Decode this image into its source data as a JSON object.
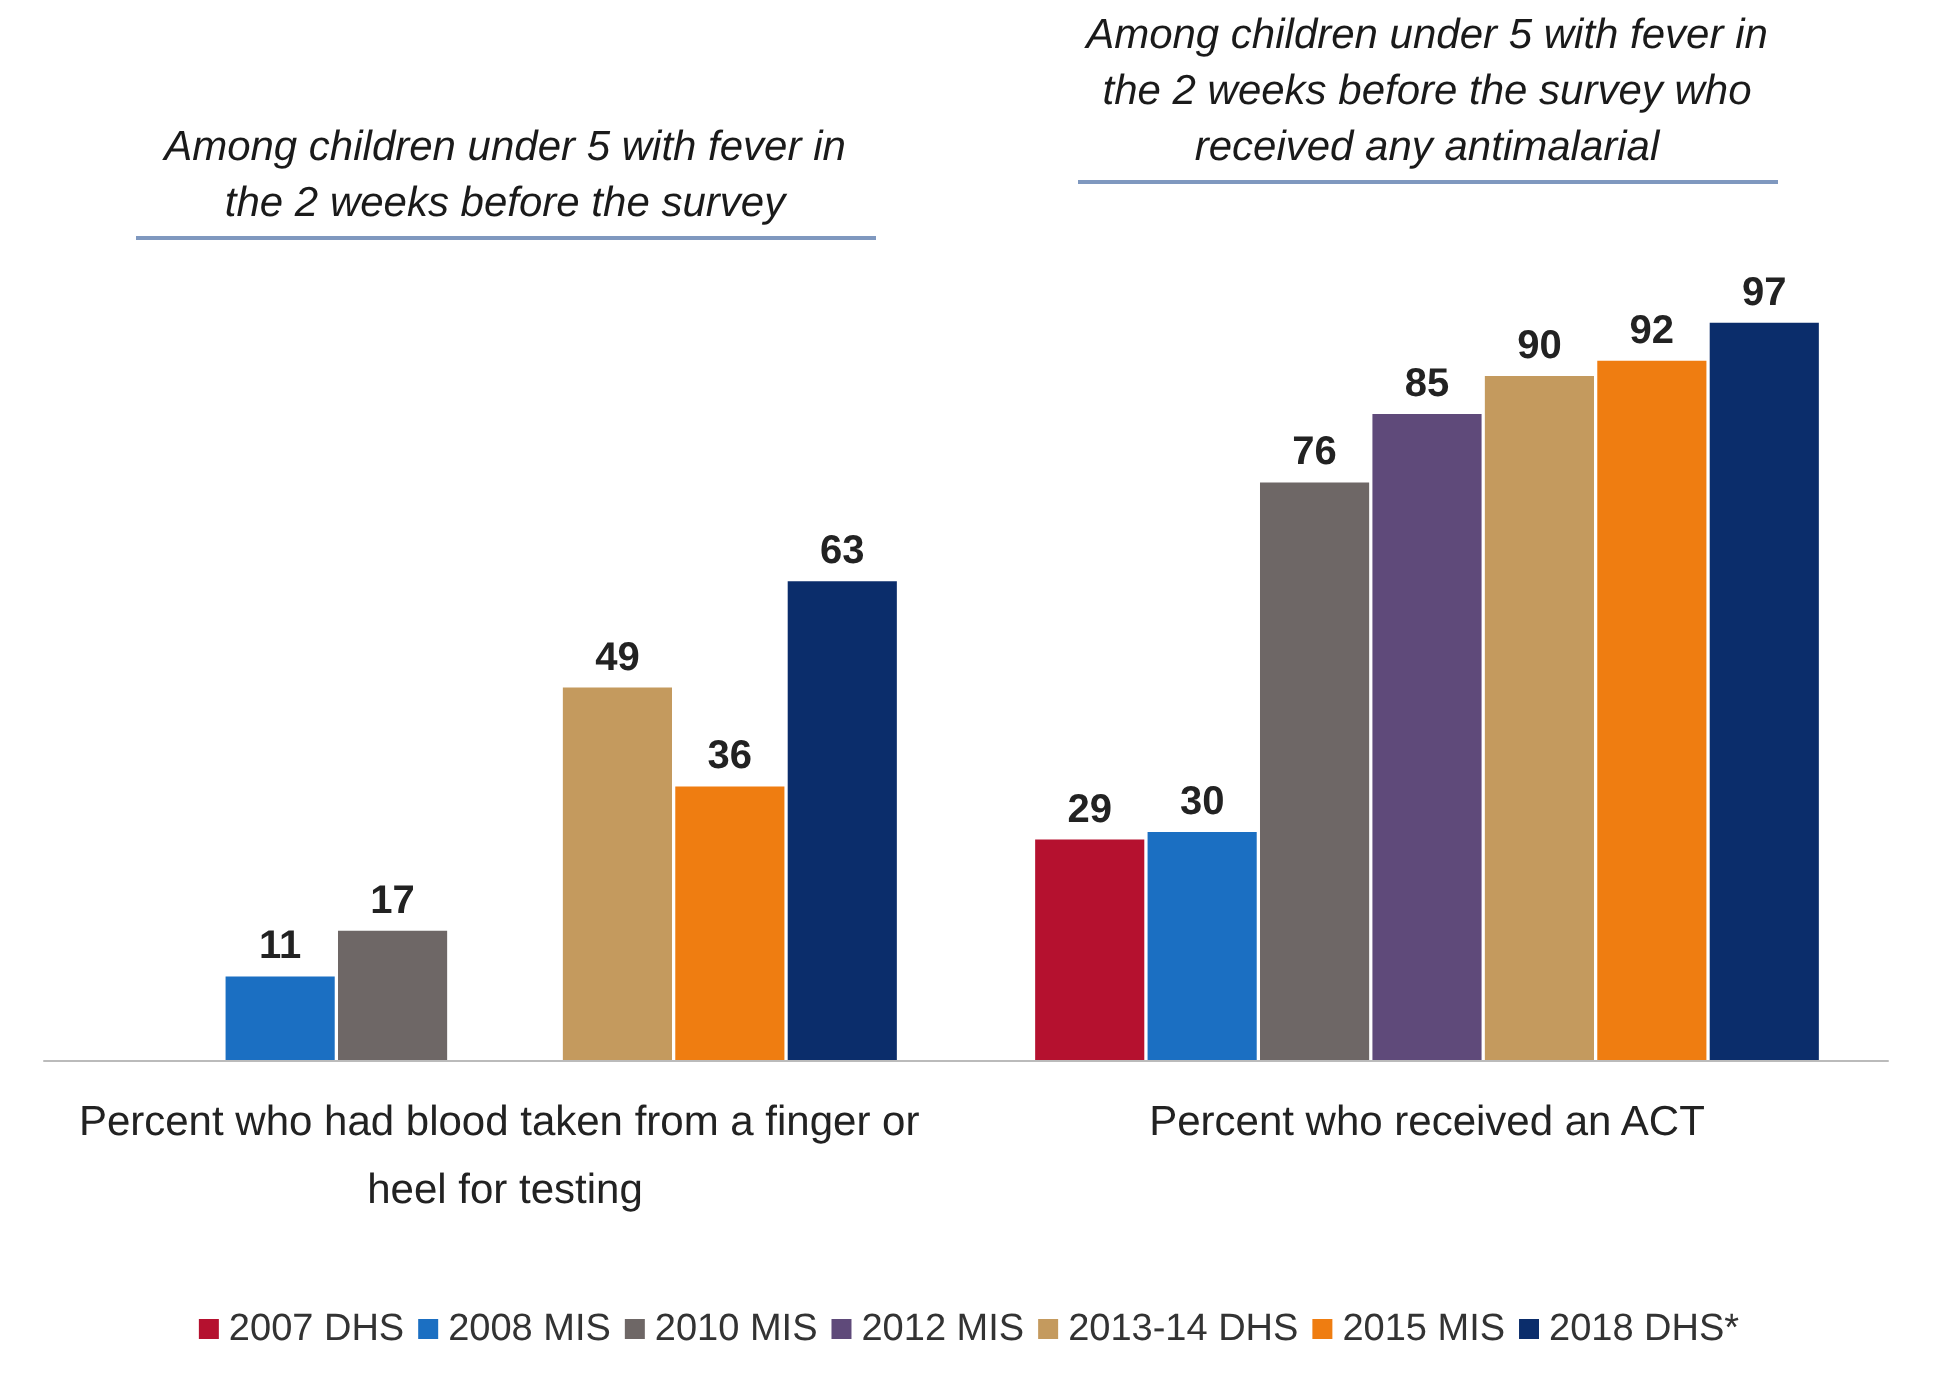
{
  "chart_data": {
    "type": "bar",
    "categories": [
      "Percent who had blood taken from a finger or heel for testing",
      "Percent who received an ACT"
    ],
    "series": [
      {
        "name": "2007 DHS",
        "color": "#b5112f",
        "values": [
          null,
          29
        ]
      },
      {
        "name": "2008 MIS",
        "color": "#1b6fc2",
        "values": [
          11,
          30
        ]
      },
      {
        "name": "2010 MIS",
        "color": "#6e6766",
        "values": [
          17,
          76
        ]
      },
      {
        "name": "2012 MIS",
        "color": "#5f4a7a",
        "values": [
          null,
          85
        ]
      },
      {
        "name": "2013-14 DHS",
        "color": "#c49a5e",
        "values": [
          49,
          90
        ]
      },
      {
        "name": "2015 MIS",
        "color": "#ef7d11",
        "values": [
          36,
          92
        ]
      },
      {
        "name": "2018 DHS*",
        "color": "#0b2d6b",
        "values": [
          63,
          97
        ]
      }
    ],
    "data_labels": true,
    "legend": "bottom",
    "annotations": [
      "Among children under 5 with fever in the 2 weeks before the survey",
      "Among children under 5 with fever in the 2 weeks before the survey who received any antimalarial"
    ]
  }
}
